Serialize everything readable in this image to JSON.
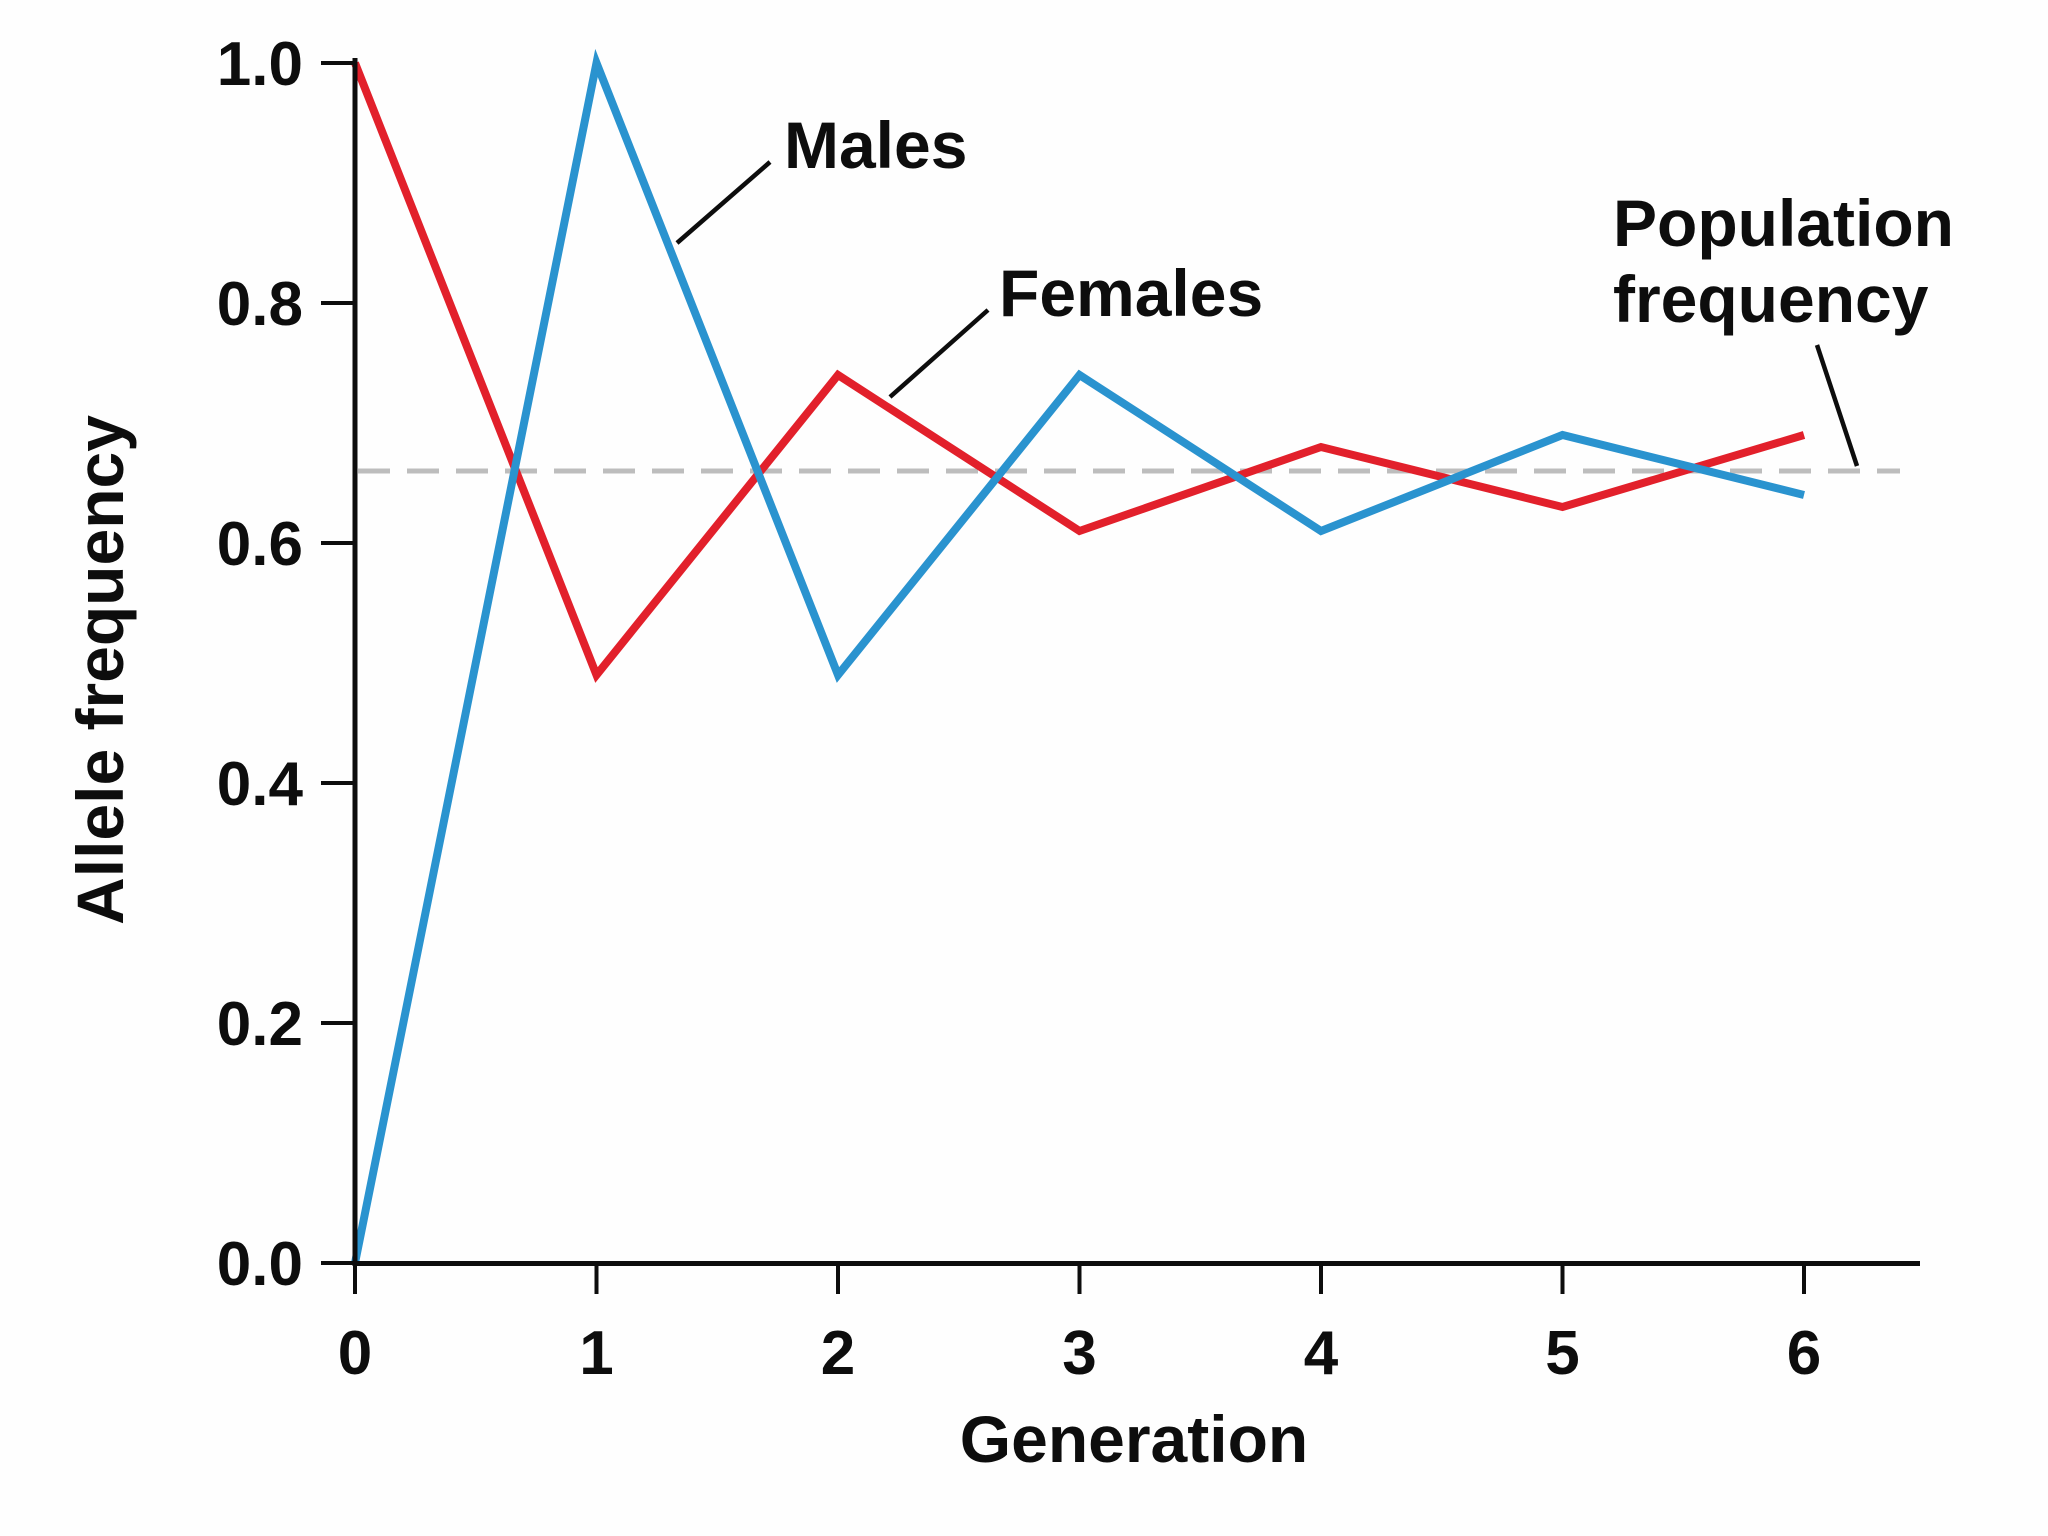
{
  "chart_data": {
    "type": "line",
    "title": "",
    "xlabel": "Generation",
    "ylabel": "Allele frequency",
    "x": [
      0,
      1,
      2,
      3,
      4,
      5,
      6
    ],
    "x_tick_labels": [
      "0",
      "1",
      "2",
      "3",
      "4",
      "5",
      "6"
    ],
    "y_ticks": [
      0.0,
      0.2,
      0.4,
      0.6,
      0.8,
      1.0
    ],
    "y_tick_labels": [
      "0.0",
      "0.2",
      "0.4",
      "0.6",
      "0.8",
      "1.0"
    ],
    "xlim": [
      0,
      6.5
    ],
    "ylim": [
      0.0,
      1.0
    ],
    "grid": false,
    "legend_position": "inline-annotations",
    "series": [
      {
        "name": "Males",
        "color": "#2a93cf",
        "values": [
          0.0,
          1.0,
          0.49,
          0.74,
          0.61,
          0.69,
          0.64
        ]
      },
      {
        "name": "Females",
        "color": "#e2202b",
        "values": [
          1.0,
          0.49,
          0.74,
          0.61,
          0.68,
          0.63,
          0.69
        ]
      }
    ],
    "reference_line": {
      "label_line1": "Population",
      "label_line2": "frequency",
      "value": 0.66,
      "style": "dashed",
      "color": "#bdbdbd"
    }
  },
  "colors": {
    "males_line": "#2a93cf",
    "females_line": "#e2202b",
    "reference_dashed": "#bdbdbd",
    "axis_and_text": "#0d0d0d",
    "background": "#fefefe"
  }
}
